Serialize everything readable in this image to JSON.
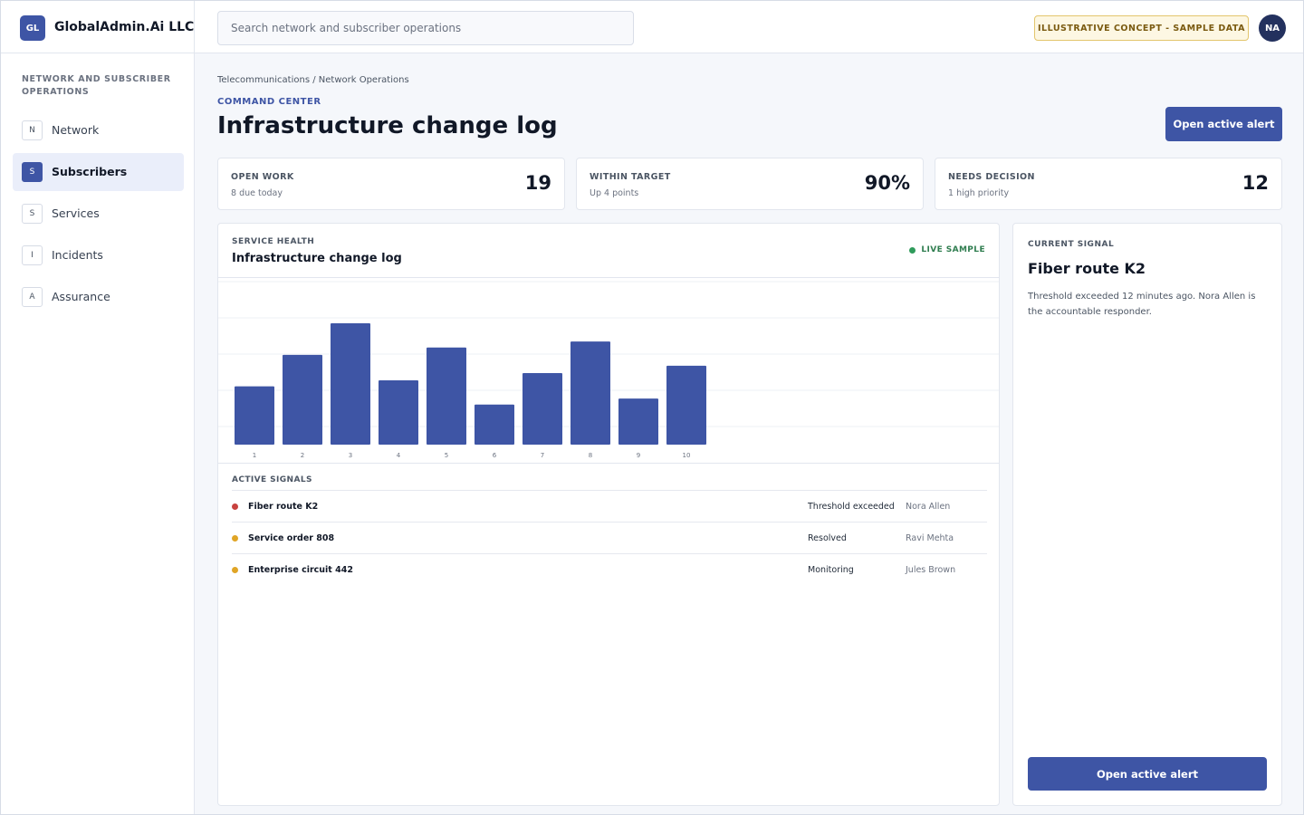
{
  "brand": {
    "logo": "GL",
    "name": "GlobalAdmin.Ai LLC"
  },
  "search": {
    "placeholder": "Search network and subscriber operations"
  },
  "concept_badge": "ILLUSTRATIVE CONCEPT - SAMPLE DATA",
  "user": {
    "initials": "NA"
  },
  "sidebar": {
    "heading": "NETWORK AND SUBSCRIBER OPERATIONS",
    "items": [
      {
        "letter": "N",
        "label": "Network"
      },
      {
        "letter": "S",
        "label": "Subscribers",
        "active": true
      },
      {
        "letter": "S",
        "label": "Services"
      },
      {
        "letter": "I",
        "label": "Incidents"
      },
      {
        "letter": "A",
        "label": "Assurance"
      }
    ]
  },
  "header": {
    "breadcrumb": "Telecommunications / Network Operations",
    "eyebrow": "COMMAND CENTER",
    "title": "Infrastructure change log",
    "action_label": "Open active alert"
  },
  "metrics": [
    {
      "label": "OPEN WORK",
      "sub": "8 due today",
      "value": "19"
    },
    {
      "label": "WITHIN TARGET",
      "sub": "Up 4 points",
      "value": "90%"
    },
    {
      "label": "NEEDS DECISION",
      "sub": "1 high priority",
      "value": "12"
    }
  ],
  "chart_panel": {
    "eyebrow": "SERVICE HEALTH",
    "title": "Infrastructure change log",
    "live_label": "LIVE SAMPLE"
  },
  "chart_data": {
    "type": "bar",
    "categories": [
      "1",
      "2",
      "3",
      "4",
      "5",
      "6",
      "7",
      "8",
      "9",
      "10"
    ],
    "values": [
      48,
      74,
      100,
      53,
      80,
      33,
      59,
      85,
      38,
      65
    ],
    "ylim": [
      0,
      100
    ],
    "grid": true,
    "bar_color": "#3e55a5"
  },
  "signals": {
    "heading": "ACTIVE SIGNALS",
    "rows": [
      {
        "name": "Fiber route K2",
        "status": "Threshold exceeded",
        "owner": "Nora Allen",
        "dot_color": "#c8423f"
      },
      {
        "name": "Service order 808",
        "status": "Resolved",
        "owner": "Ravi Mehta",
        "dot_color": "#e0a526"
      },
      {
        "name": "Enterprise circuit 442",
        "status": "Monitoring",
        "owner": "Jules Brown",
        "dot_color": "#e0a526"
      }
    ]
  },
  "current_signal": {
    "eyebrow": "CURRENT SIGNAL",
    "title": "Fiber route K2",
    "description": "Threshold exceeded 12 minutes ago. Nora Allen is the accountable responder.",
    "action_label": "Open active alert"
  }
}
